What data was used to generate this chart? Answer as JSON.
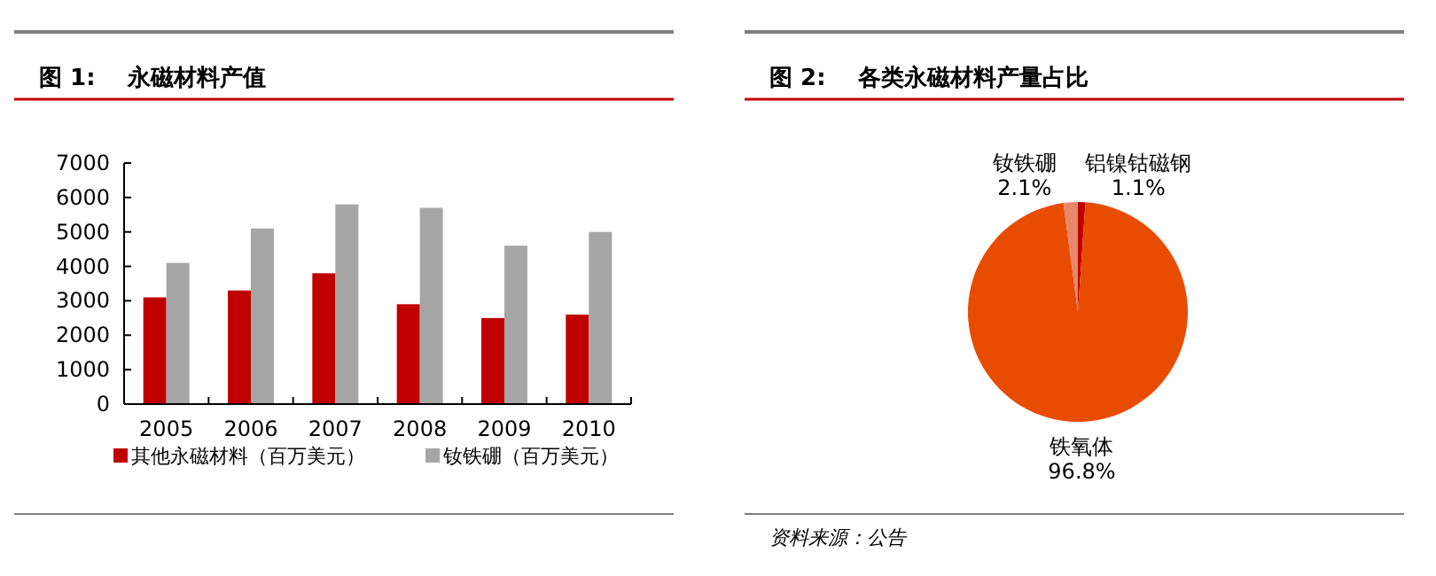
{
  "chart_data": [
    {
      "type": "bar",
      "title": "图 1:    永磁材料产值",
      "categories": [
        "2005",
        "2006",
        "2007",
        "2008",
        "2009",
        "2010"
      ],
      "series": [
        {
          "name": "其他永磁材料（百万美元）",
          "color": "#c00000",
          "values": [
            3100,
            3300,
            3800,
            2900,
            2500,
            2600
          ]
        },
        {
          "name": "钕铁硼（百万美元）",
          "color": "#a6a6a6",
          "values": [
            4100,
            5100,
            5800,
            5700,
            4600,
            5000
          ]
        }
      ],
      "ylim": [
        0,
        7000
      ],
      "yticks": [
        0,
        1000,
        2000,
        3000,
        4000,
        5000,
        6000,
        7000
      ],
      "grid": false,
      "legend": "bottom"
    },
    {
      "type": "pie",
      "title": "图 2:    各类永磁材料产量占比",
      "categories": [
        "铝镍钴磁钢",
        "铁氧体",
        "钕铁硼"
      ],
      "values": [
        1.1,
        96.8,
        2.1
      ],
      "value_labels": [
        "1.1%",
        "96.8%",
        "2.1%"
      ],
      "colors": [
        "#c00000",
        "#e84c00",
        "#e8876a"
      ],
      "annotations": [
        "资料来源：公告"
      ]
    }
  ]
}
